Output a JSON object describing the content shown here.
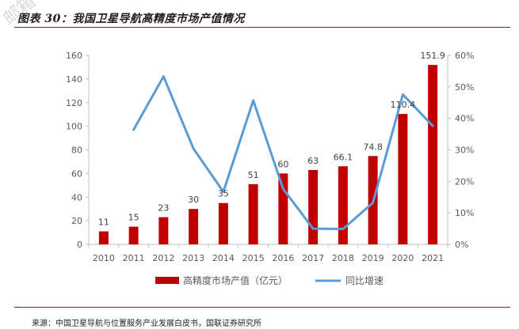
{
  "figure_title": "图表 30：我国卫星导航高精度市场产值情况",
  "watermark": "邮箱",
  "source": "来源：中国卫星导航与位置服务产业发展白皮书，国联证券研究所",
  "colors": {
    "bar": "#C00000",
    "line": "#5B9BD5",
    "accent_rule": "#8B1A2B",
    "axis": "#BFBFBF",
    "text": "#595959"
  },
  "chart_data": {
    "type": "bar",
    "categories": [
      "2010",
      "2011",
      "2012",
      "2013",
      "2014",
      "2015",
      "2016",
      "2017",
      "2018",
      "2019",
      "2020",
      "2021"
    ],
    "series": [
      {
        "name": "高精度市场产值（亿元）",
        "type": "bar",
        "axis": "left",
        "values": [
          11,
          15,
          23,
          30,
          35,
          51,
          60,
          63,
          66.1,
          74.8,
          110.4,
          151.9
        ]
      },
      {
        "name": "同比增速",
        "type": "line",
        "axis": "right",
        "values": [
          null,
          36.4,
          53.3,
          30.4,
          16.7,
          45.7,
          17.6,
          5.0,
          4.9,
          13.2,
          47.6,
          37.6
        ]
      }
    ],
    "data_labels": [
      "11",
      "15",
      "23",
      "30",
      "35",
      "51",
      "60",
      "63",
      "66.1",
      "74.8",
      "110.4",
      "151.9"
    ],
    "y_left": {
      "min": 0,
      "max": 160,
      "step": 20,
      "ticks": [
        "0",
        "20",
        "40",
        "60",
        "80",
        "100",
        "120",
        "140",
        "160"
      ]
    },
    "y_right": {
      "min": 0,
      "max": 60,
      "step": 10,
      "ticks": [
        "0%",
        "10%",
        "20%",
        "30%",
        "40%",
        "50%",
        "60%"
      ]
    },
    "legend": {
      "position": "bottom",
      "items": [
        "高精度市场产值（亿元）",
        "同比增速"
      ]
    },
    "grid": false
  }
}
